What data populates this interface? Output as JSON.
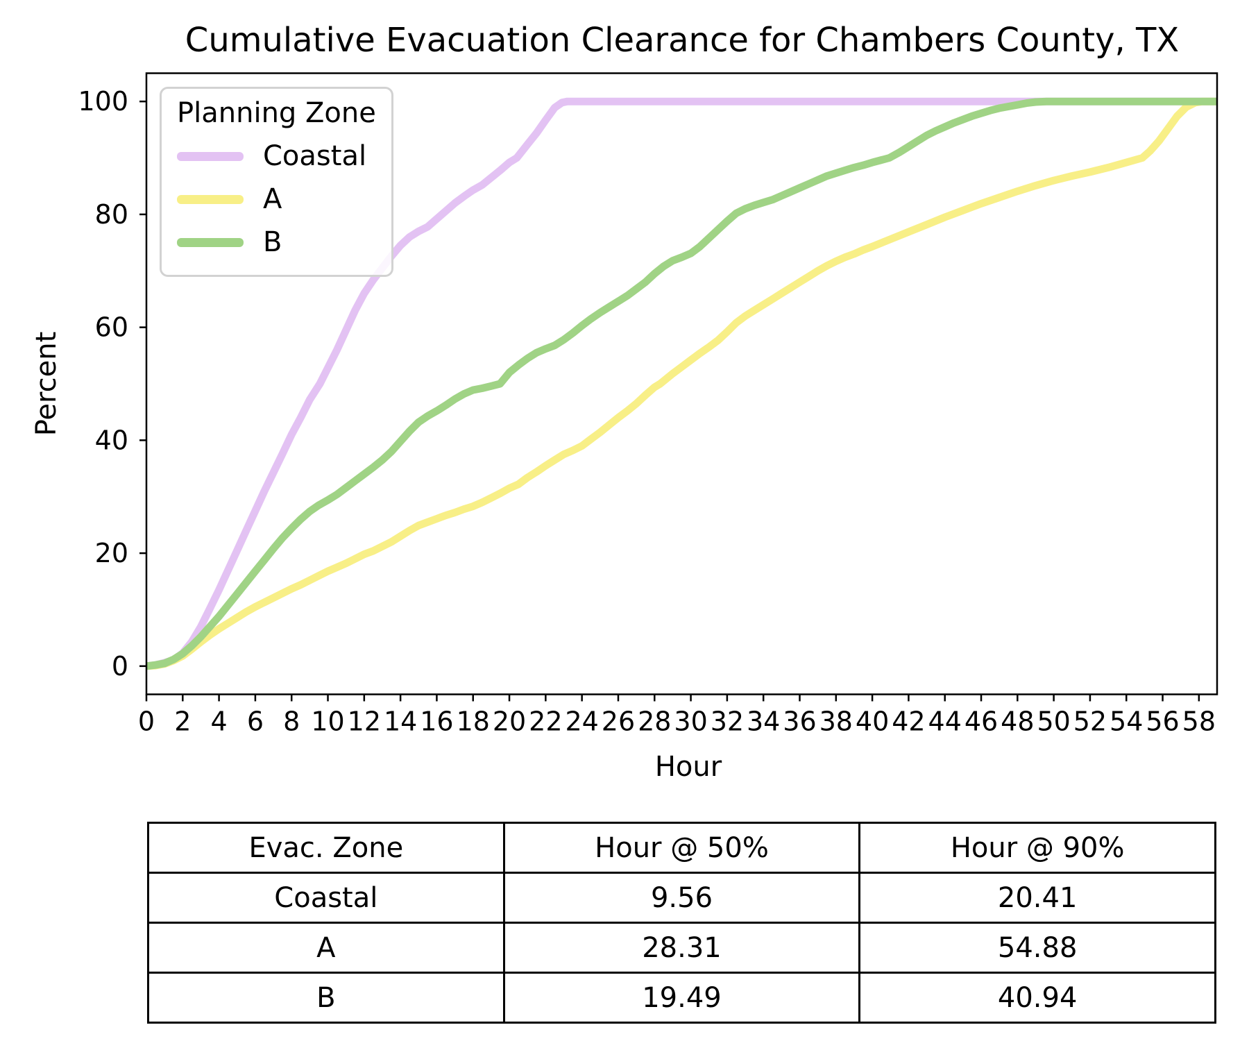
{
  "chart_data": {
    "type": "line",
    "title": "Cumulative Evacuation Clearance for Chambers County, TX",
    "xlabel": "Hour",
    "ylabel": "Percent",
    "xlim": [
      0,
      59
    ],
    "ylim": [
      -5,
      105
    ],
    "xticks": [
      0,
      2,
      4,
      6,
      8,
      10,
      12,
      14,
      16,
      18,
      20,
      22,
      24,
      26,
      28,
      30,
      32,
      34,
      36,
      38,
      40,
      42,
      44,
      46,
      48,
      50,
      52,
      54,
      56,
      58
    ],
    "yticks": [
      0,
      20,
      40,
      60,
      80,
      100
    ],
    "grid": false,
    "legend": {
      "title": "Planning Zone",
      "position": "upper left"
    },
    "line_width": 11,
    "series": [
      {
        "name": "Coastal",
        "color": "#e3c2f3",
        "points": [
          [
            0,
            0
          ],
          [
            0.5,
            0.2
          ],
          [
            1,
            0.6
          ],
          [
            1.5,
            1.1
          ],
          [
            2,
            2.3
          ],
          [
            2.5,
            4.3
          ],
          [
            3,
            7
          ],
          [
            3.5,
            10.2
          ],
          [
            4,
            13.5
          ],
          [
            4.5,
            17
          ],
          [
            5,
            20.5
          ],
          [
            5.5,
            24
          ],
          [
            6,
            27.5
          ],
          [
            6.5,
            31
          ],
          [
            7,
            34.3
          ],
          [
            7.5,
            37.6
          ],
          [
            8,
            41
          ],
          [
            8.5,
            44
          ],
          [
            9,
            47.2
          ],
          [
            9.56,
            50
          ],
          [
            10,
            52.8
          ],
          [
            10.5,
            56
          ],
          [
            11,
            59.5
          ],
          [
            11.5,
            63
          ],
          [
            12,
            66
          ],
          [
            12.5,
            68.4
          ],
          [
            13,
            70.5
          ],
          [
            13.5,
            72.6
          ],
          [
            14,
            74.5
          ],
          [
            14.5,
            76
          ],
          [
            15,
            77
          ],
          [
            15.5,
            77.8
          ],
          [
            16,
            79.2
          ],
          [
            16.5,
            80.6
          ],
          [
            17,
            82
          ],
          [
            17.5,
            83.2
          ],
          [
            18,
            84.3
          ],
          [
            18.5,
            85.2
          ],
          [
            19,
            86.5
          ],
          [
            19.5,
            87.8
          ],
          [
            20,
            89.2
          ],
          [
            20.41,
            90
          ],
          [
            21,
            92.4
          ],
          [
            21.5,
            94.4
          ],
          [
            22,
            96.7
          ],
          [
            22.5,
            98.9
          ],
          [
            22.9,
            99.8
          ],
          [
            23.2,
            100
          ],
          [
            59,
            100
          ]
        ]
      },
      {
        "name": "A",
        "color": "#f8ef87",
        "points": [
          [
            0,
            0
          ],
          [
            0.5,
            0.1
          ],
          [
            1,
            0.4
          ],
          [
            1.5,
            1
          ],
          [
            2,
            1.8
          ],
          [
            2.5,
            3
          ],
          [
            3,
            4.3
          ],
          [
            3.5,
            5.5
          ],
          [
            4,
            6.6
          ],
          [
            4.5,
            7.6
          ],
          [
            5,
            8.6
          ],
          [
            5.5,
            9.6
          ],
          [
            6,
            10.5
          ],
          [
            6.5,
            11.3
          ],
          [
            7,
            12.1
          ],
          [
            7.5,
            12.9
          ],
          [
            8,
            13.7
          ],
          [
            8.5,
            14.4
          ],
          [
            9,
            15.2
          ],
          [
            9.5,
            16
          ],
          [
            10,
            16.8
          ],
          [
            10.5,
            17.5
          ],
          [
            11,
            18.2
          ],
          [
            11.5,
            19
          ],
          [
            12,
            19.8
          ],
          [
            12.5,
            20.4
          ],
          [
            13,
            21.2
          ],
          [
            13.5,
            22
          ],
          [
            14,
            23
          ],
          [
            14.5,
            24
          ],
          [
            15,
            24.9
          ],
          [
            15.5,
            25.5
          ],
          [
            16,
            26.1
          ],
          [
            16.5,
            26.7
          ],
          [
            17,
            27.2
          ],
          [
            17.5,
            27.8
          ],
          [
            18,
            28.3
          ],
          [
            18.5,
            29
          ],
          [
            19,
            29.8
          ],
          [
            19.5,
            30.6
          ],
          [
            20,
            31.5
          ],
          [
            20.5,
            32.2
          ],
          [
            21,
            33.4
          ],
          [
            21.5,
            34.4
          ],
          [
            22,
            35.5
          ],
          [
            22.5,
            36.5
          ],
          [
            23,
            37.5
          ],
          [
            23.5,
            38.2
          ],
          [
            24,
            39
          ],
          [
            24.5,
            40.2
          ],
          [
            25,
            41.4
          ],
          [
            25.5,
            42.7
          ],
          [
            26,
            44
          ],
          [
            26.5,
            45.2
          ],
          [
            27,
            46.5
          ],
          [
            27.5,
            48
          ],
          [
            28,
            49.4
          ],
          [
            28.31,
            50
          ],
          [
            29,
            51.8
          ],
          [
            29.5,
            53
          ],
          [
            30,
            54.2
          ],
          [
            30.5,
            55.4
          ],
          [
            31,
            56.5
          ],
          [
            31.5,
            57.7
          ],
          [
            32,
            59.2
          ],
          [
            32.5,
            60.8
          ],
          [
            33,
            62
          ],
          [
            33.5,
            63
          ],
          [
            34,
            64
          ],
          [
            34.5,
            65
          ],
          [
            35,
            66
          ],
          [
            35.5,
            67
          ],
          [
            36,
            68
          ],
          [
            36.5,
            69
          ],
          [
            37,
            70
          ],
          [
            37.5,
            70.9
          ],
          [
            38,
            71.7
          ],
          [
            38.5,
            72.4
          ],
          [
            39,
            73
          ],
          [
            39.5,
            73.7
          ],
          [
            40,
            74.3
          ],
          [
            41,
            75.6
          ],
          [
            42,
            76.9
          ],
          [
            43,
            78.2
          ],
          [
            44,
            79.5
          ],
          [
            45,
            80.7
          ],
          [
            46,
            81.9
          ],
          [
            47,
            83
          ],
          [
            48,
            84.1
          ],
          [
            49,
            85.1
          ],
          [
            50,
            86
          ],
          [
            51,
            86.8
          ],
          [
            52,
            87.5
          ],
          [
            53,
            88.3
          ],
          [
            54,
            89.2
          ],
          [
            54.88,
            90
          ],
          [
            55.3,
            91.2
          ],
          [
            55.8,
            93
          ],
          [
            56.3,
            95.2
          ],
          [
            56.8,
            97.4
          ],
          [
            57.3,
            99
          ],
          [
            57.8,
            99.8
          ],
          [
            58.2,
            100
          ],
          [
            59,
            100
          ]
        ]
      },
      {
        "name": "B",
        "color": "#a0d385",
        "points": [
          [
            0,
            0
          ],
          [
            0.5,
            0.2
          ],
          [
            1,
            0.5
          ],
          [
            1.5,
            1.2
          ],
          [
            2,
            2.2
          ],
          [
            2.5,
            3.6
          ],
          [
            3,
            5.2
          ],
          [
            3.5,
            7
          ],
          [
            4,
            8.8
          ],
          [
            4.5,
            10.8
          ],
          [
            5,
            12.8
          ],
          [
            5.5,
            14.8
          ],
          [
            6,
            16.8
          ],
          [
            6.5,
            18.8
          ],
          [
            7,
            20.8
          ],
          [
            7.5,
            22.7
          ],
          [
            8,
            24.4
          ],
          [
            8.5,
            26
          ],
          [
            9,
            27.4
          ],
          [
            9.5,
            28.5
          ],
          [
            10,
            29.4
          ],
          [
            10.5,
            30.4
          ],
          [
            11,
            31.6
          ],
          [
            11.5,
            32.8
          ],
          [
            12,
            34
          ],
          [
            12.5,
            35.2
          ],
          [
            13,
            36.5
          ],
          [
            13.5,
            38
          ],
          [
            14,
            39.8
          ],
          [
            14.5,
            41.6
          ],
          [
            15,
            43.2
          ],
          [
            15.5,
            44.3
          ],
          [
            16,
            45.2
          ],
          [
            16.5,
            46.2
          ],
          [
            17,
            47.3
          ],
          [
            17.5,
            48.2
          ],
          [
            18,
            48.9
          ],
          [
            18.5,
            49.2
          ],
          [
            19,
            49.6
          ],
          [
            19.49,
            50
          ],
          [
            20,
            52
          ],
          [
            20.5,
            53.3
          ],
          [
            21,
            54.5
          ],
          [
            21.5,
            55.5
          ],
          [
            22,
            56.2
          ],
          [
            22.5,
            56.8
          ],
          [
            23,
            57.8
          ],
          [
            23.5,
            59
          ],
          [
            24,
            60.3
          ],
          [
            24.5,
            61.5
          ],
          [
            25,
            62.6
          ],
          [
            25.5,
            63.6
          ],
          [
            26,
            64.6
          ],
          [
            26.5,
            65.6
          ],
          [
            27,
            66.8
          ],
          [
            27.5,
            68
          ],
          [
            28,
            69.5
          ],
          [
            28.5,
            70.8
          ],
          [
            29,
            71.8
          ],
          [
            29.5,
            72.4
          ],
          [
            30,
            73.1
          ],
          [
            30.5,
            74.3
          ],
          [
            31,
            75.8
          ],
          [
            31.5,
            77.3
          ],
          [
            32,
            78.8
          ],
          [
            32.5,
            80.2
          ],
          [
            33,
            81
          ],
          [
            33.5,
            81.6
          ],
          [
            34,
            82.1
          ],
          [
            34.5,
            82.6
          ],
          [
            35,
            83.3
          ],
          [
            35.5,
            84
          ],
          [
            36,
            84.7
          ],
          [
            36.5,
            85.4
          ],
          [
            37,
            86.1
          ],
          [
            37.5,
            86.8
          ],
          [
            38,
            87.3
          ],
          [
            38.5,
            87.8
          ],
          [
            39,
            88.3
          ],
          [
            39.5,
            88.7
          ],
          [
            40,
            89.2
          ],
          [
            40.94,
            90
          ],
          [
            41.5,
            91
          ],
          [
            42,
            92
          ],
          [
            42.5,
            93
          ],
          [
            43,
            94
          ],
          [
            43.5,
            94.8
          ],
          [
            44,
            95.5
          ],
          [
            44.5,
            96.2
          ],
          [
            45,
            96.8
          ],
          [
            45.5,
            97.4
          ],
          [
            46,
            97.9
          ],
          [
            46.5,
            98.4
          ],
          [
            47,
            98.8
          ],
          [
            47.5,
            99.1
          ],
          [
            48,
            99.4
          ],
          [
            48.5,
            99.7
          ],
          [
            49,
            99.9
          ],
          [
            49.6,
            100
          ],
          [
            59,
            100
          ]
        ]
      }
    ]
  },
  "table": {
    "headers": [
      "Evac. Zone",
      "Hour @ 50%",
      "Hour @ 90%"
    ],
    "rows": [
      [
        "Coastal",
        "9.56",
        "20.41"
      ],
      [
        "A",
        "28.31",
        "54.88"
      ],
      [
        "B",
        "19.49",
        "40.94"
      ]
    ]
  }
}
